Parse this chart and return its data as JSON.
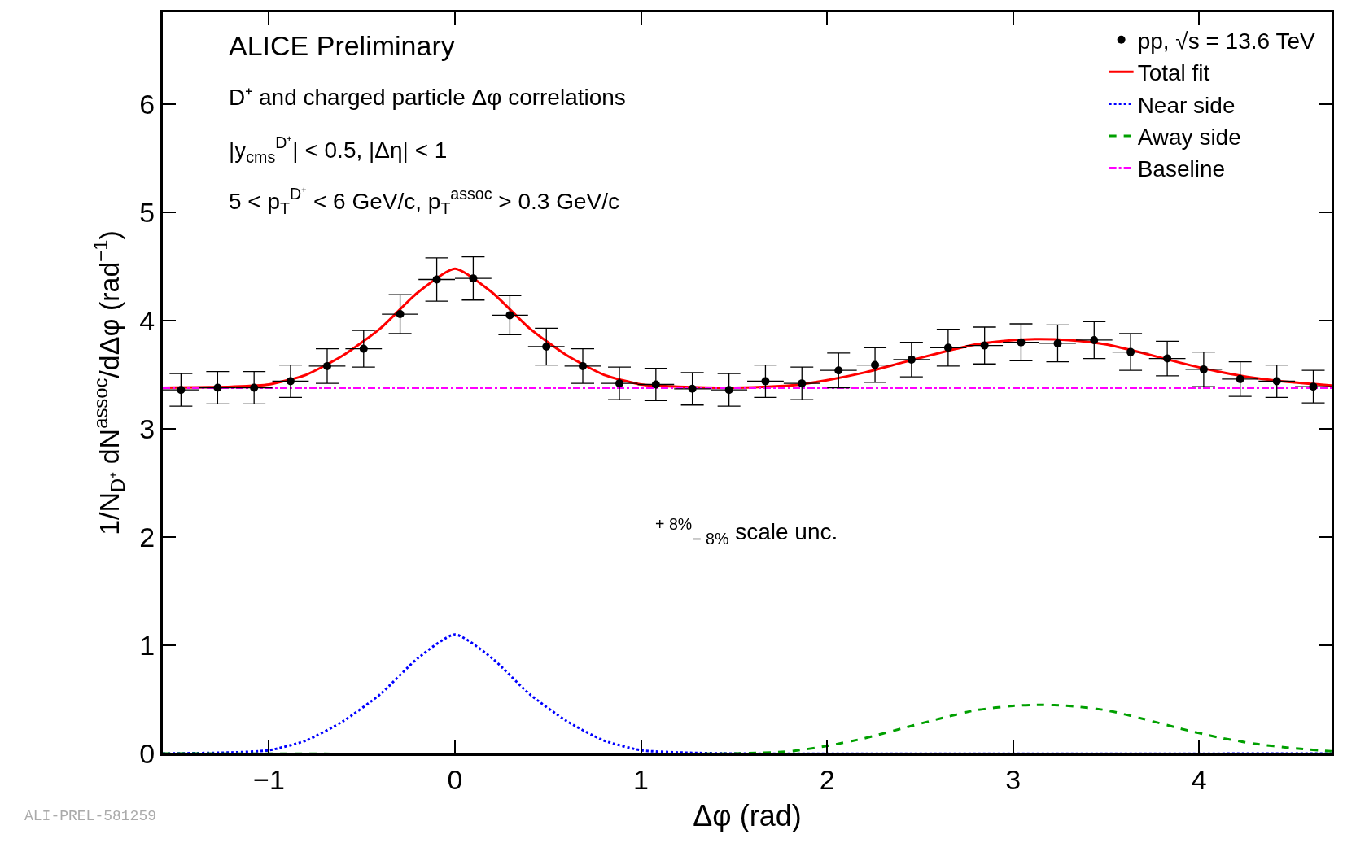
{
  "chart_data": {
    "type": "scatter",
    "xlabel": "Δφ (rad)",
    "ylabel": "1/N$_{D⁺}$ dN$^{assoc}$/dΔφ (rad$^{−1}$)",
    "xlim": [
      -1.5708,
      4.7124
    ],
    "ylim": [
      0,
      6.85
    ],
    "xticks": [
      {
        "value": -1,
        "label": "−1"
      },
      0,
      1,
      2,
      3,
      4
    ],
    "yticks": [
      0,
      1,
      2,
      3,
      4,
      5,
      6
    ],
    "legend": "top right",
    "annotations": [
      "ALICE Preliminary",
      "D⁺ and charged particle Δφ correlations",
      "|y$_{cms}$$^{D⁺}$| < 0.5, |Δη| < 1",
      "5 < p$_{T}$$^{D⁺}$ < 6 GeV/c, p$_{T}$$^{assoc}$ > 0.3 GeV/c",
      "$^{+ 8%}$$_{− 8%}$ scale unc.",
      "ALI-PREL-581259"
    ],
    "series": [
      {
        "name": "pp, √s = 13.6 TeV",
        "color": "#000000",
        "marker": "circle",
        "x": [
          -1.473,
          -1.276,
          -1.08,
          -0.884,
          -0.687,
          -0.491,
          -0.295,
          -0.098,
          0.098,
          0.295,
          0.491,
          0.687,
          0.884,
          1.08,
          1.276,
          1.473,
          1.669,
          1.865,
          2.062,
          2.258,
          2.454,
          2.651,
          2.847,
          3.043,
          3.24,
          3.436,
          3.632,
          3.829,
          4.025,
          4.221,
          4.418,
          4.614
        ],
        "values": [
          3.36,
          3.38,
          3.38,
          3.44,
          3.58,
          3.74,
          4.06,
          4.38,
          4.39,
          4.05,
          3.76,
          3.58,
          3.42,
          3.41,
          3.37,
          3.36,
          3.44,
          3.42,
          3.54,
          3.59,
          3.64,
          3.75,
          3.77,
          3.8,
          3.79,
          3.82,
          3.71,
          3.65,
          3.55,
          3.46,
          3.44,
          3.39
        ],
        "errors": [
          0.15,
          0.15,
          0.15,
          0.15,
          0.16,
          0.17,
          0.18,
          0.2,
          0.2,
          0.18,
          0.17,
          0.16,
          0.15,
          0.15,
          0.15,
          0.15,
          0.15,
          0.15,
          0.16,
          0.16,
          0.16,
          0.17,
          0.17,
          0.17,
          0.17,
          0.17,
          0.17,
          0.16,
          0.16,
          0.16,
          0.15,
          0.15
        ],
        "xerrors": [
          0.098,
          0.098,
          0.098,
          0.098,
          0.098,
          0.098,
          0.098,
          0.098,
          0.098,
          0.098,
          0.098,
          0.098,
          0.098,
          0.098,
          0.098,
          0.098,
          0.098,
          0.098,
          0.098,
          0.098,
          0.098,
          0.098,
          0.098,
          0.098,
          0.098,
          0.098,
          0.098,
          0.098,
          0.098,
          0.098,
          0.098,
          0.098
        ]
      },
      {
        "name": "Total fit",
        "type": "line",
        "color": "#ff0000",
        "line_style": "solid",
        "x": [
          -1.5708,
          -1.2,
          -1.0,
          -0.8,
          -0.6,
          -0.4,
          -0.2,
          0,
          0.2,
          0.4,
          0.6,
          0.8,
          1.0,
          1.2,
          1.5,
          1.8,
          2.0,
          2.2,
          2.4,
          2.6,
          2.8,
          3.0,
          3.14,
          3.3,
          3.5,
          3.7,
          3.9,
          4.1,
          4.3,
          4.5,
          4.7124
        ],
        "values": [
          3.38,
          3.39,
          3.41,
          3.5,
          3.68,
          3.93,
          4.26,
          4.48,
          4.26,
          3.93,
          3.68,
          3.5,
          3.41,
          3.39,
          3.38,
          3.4,
          3.45,
          3.52,
          3.61,
          3.7,
          3.78,
          3.82,
          3.83,
          3.82,
          3.78,
          3.7,
          3.61,
          3.53,
          3.47,
          3.43,
          3.4
        ]
      },
      {
        "name": "Near side",
        "type": "line",
        "color": "#0000ff",
        "line_style": "dotted",
        "x": [
          -1.5708,
          -1.2,
          -1.0,
          -0.8,
          -0.6,
          -0.4,
          -0.2,
          0,
          0.2,
          0.4,
          0.6,
          0.8,
          1.0,
          1.2,
          1.5,
          4.7124
        ],
        "values": [
          0,
          0.01,
          0.03,
          0.12,
          0.3,
          0.55,
          0.88,
          1.1,
          0.88,
          0.55,
          0.3,
          0.12,
          0.03,
          0.01,
          0,
          0
        ]
      },
      {
        "name": "Away side",
        "type": "line",
        "color": "#00a000",
        "line_style": "dashed",
        "x": [
          -1.5708,
          1.5,
          1.8,
          2.0,
          2.2,
          2.4,
          2.6,
          2.8,
          3.0,
          3.14,
          3.3,
          3.5,
          3.7,
          3.9,
          4.1,
          4.3,
          4.5,
          4.712
        ],
        "values": [
          0,
          0,
          0.02,
          0.07,
          0.14,
          0.23,
          0.32,
          0.4,
          0.44,
          0.45,
          0.44,
          0.4,
          0.32,
          0.23,
          0.15,
          0.09,
          0.05,
          0.02
        ]
      },
      {
        "name": "Baseline",
        "type": "line",
        "color": "#ff00ff",
        "line_style": "dashdot",
        "x": [
          -1.5708,
          4.7124
        ],
        "values": [
          3.38,
          3.38
        ]
      }
    ]
  }
}
